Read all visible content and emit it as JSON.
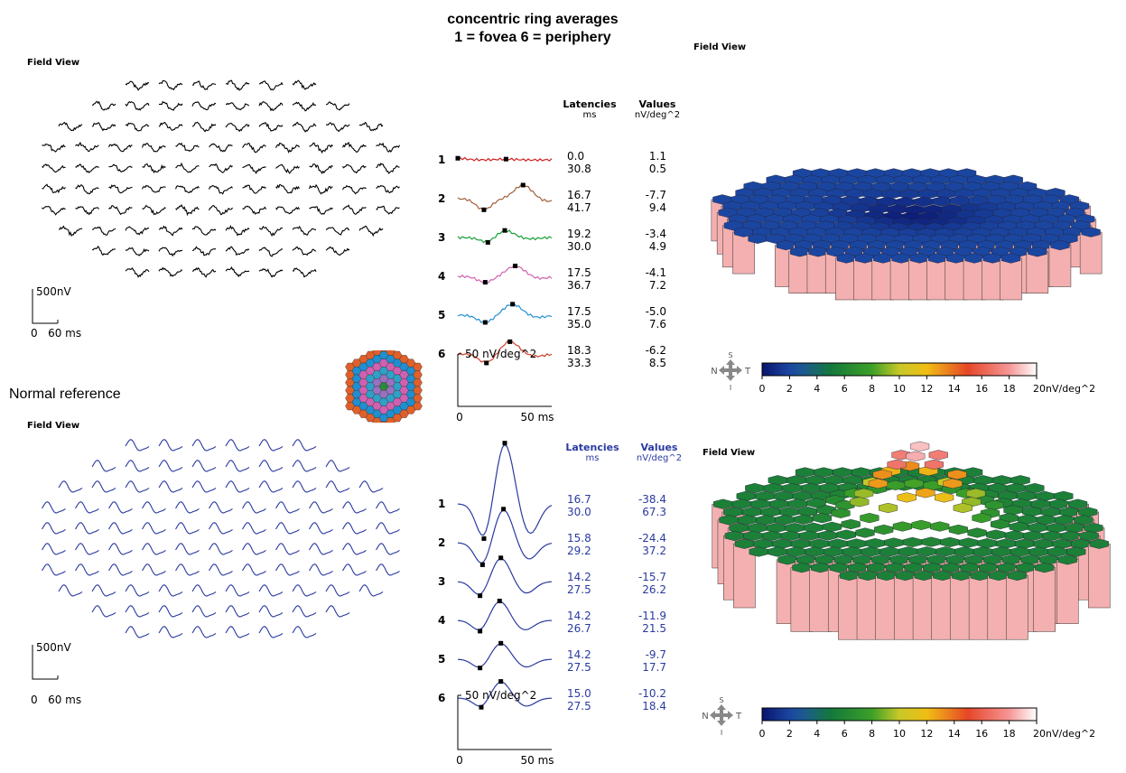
{
  "header": {
    "line1": "concentric ring averages",
    "line2": "1 = fovea   6 = periphery"
  },
  "field_view_label": "Field View",
  "normal_reference_label": "Normal reference",
  "scale_labels": {
    "amplitude": "500nV",
    "time": "0   60 ms",
    "ring_amp": "50 nV/deg^2",
    "ring_t0": "0",
    "ring_t1": "50 ms"
  },
  "table_headers": {
    "latencies": "Latencies",
    "latencies_unit": "ms",
    "values": "Values",
    "values_unit": "nV/deg^2"
  },
  "compass": {
    "s": "S",
    "n": "N",
    "t": "T",
    "i": "I"
  },
  "colorbar": {
    "ticks": [
      "0",
      "2",
      "4",
      "6",
      "8",
      "10",
      "12",
      "14",
      "16",
      "18",
      "20nV/deg^2"
    ]
  },
  "colors": {
    "patient_trace": "#000000",
    "normal_trace": "#2a3aa0",
    "rings": [
      "#cc1f1f",
      "#a0603a",
      "#16a035",
      "#d060b0",
      "#1f8fd0",
      "#d0402a"
    ],
    "normal_table_text": "#2a3aa0"
  },
  "chart_data": [
    {
      "type": "line",
      "title": "concentric ring averages",
      "subtitle": "1 = fovea   6 = periphery",
      "panel": "patient",
      "xlabel": "ms",
      "ylabel": "nV/deg^2",
      "xticks": [
        "0",
        "50 ms"
      ],
      "series": [
        {
          "name": "1",
          "latencies_ms": [
            0.0,
            30.8
          ],
          "values_nv_deg2": [
            1.1,
            0.5
          ]
        },
        {
          "name": "2",
          "latencies_ms": [
            16.7,
            41.7
          ],
          "values_nv_deg2": [
            -7.7,
            9.4
          ]
        },
        {
          "name": "3",
          "latencies_ms": [
            19.2,
            30.0
          ],
          "values_nv_deg2": [
            -3.4,
            4.9
          ]
        },
        {
          "name": "4",
          "latencies_ms": [
            17.5,
            36.7
          ],
          "values_nv_deg2": [
            -4.1,
            7.2
          ]
        },
        {
          "name": "5",
          "latencies_ms": [
            17.5,
            35.0
          ],
          "values_nv_deg2": [
            -5.0,
            7.6
          ]
        },
        {
          "name": "6",
          "latencies_ms": [
            18.3,
            33.3
          ],
          "values_nv_deg2": [
            -6.2,
            8.5
          ]
        }
      ]
    },
    {
      "type": "line",
      "title": "Normal reference",
      "panel": "normal",
      "xlabel": "ms",
      "ylabel": "nV/deg^2",
      "xticks": [
        "0",
        "50 ms"
      ],
      "series": [
        {
          "name": "1",
          "latencies_ms": [
            16.7,
            30.0
          ],
          "values_nv_deg2": [
            -38.4,
            67.3
          ]
        },
        {
          "name": "2",
          "latencies_ms": [
            15.8,
            29.2
          ],
          "values_nv_deg2": [
            -24.4,
            37.2
          ]
        },
        {
          "name": "3",
          "latencies_ms": [
            14.2,
            27.5
          ],
          "values_nv_deg2": [
            -15.7,
            26.2
          ]
        },
        {
          "name": "4",
          "latencies_ms": [
            14.2,
            26.7
          ],
          "values_nv_deg2": [
            -11.9,
            21.5
          ]
        },
        {
          "name": "5",
          "latencies_ms": [
            14.2,
            27.5
          ],
          "values_nv_deg2": [
            -9.7,
            17.7
          ]
        },
        {
          "name": "6",
          "latencies_ms": [
            15.0,
            27.5
          ],
          "values_nv_deg2": [
            -10.2,
            18.4
          ]
        }
      ]
    },
    {
      "type": "heatmap",
      "title": "Field View",
      "panel": "patient-3d",
      "color_range": [
        0,
        20
      ],
      "unit": "nV/deg^2",
      "description_level": "low density with central depression"
    },
    {
      "type": "heatmap",
      "title": "Field View",
      "panel": "normal-3d",
      "color_range": [
        0,
        20
      ],
      "unit": "nV/deg^2",
      "description_level": "central foveal peak"
    }
  ]
}
